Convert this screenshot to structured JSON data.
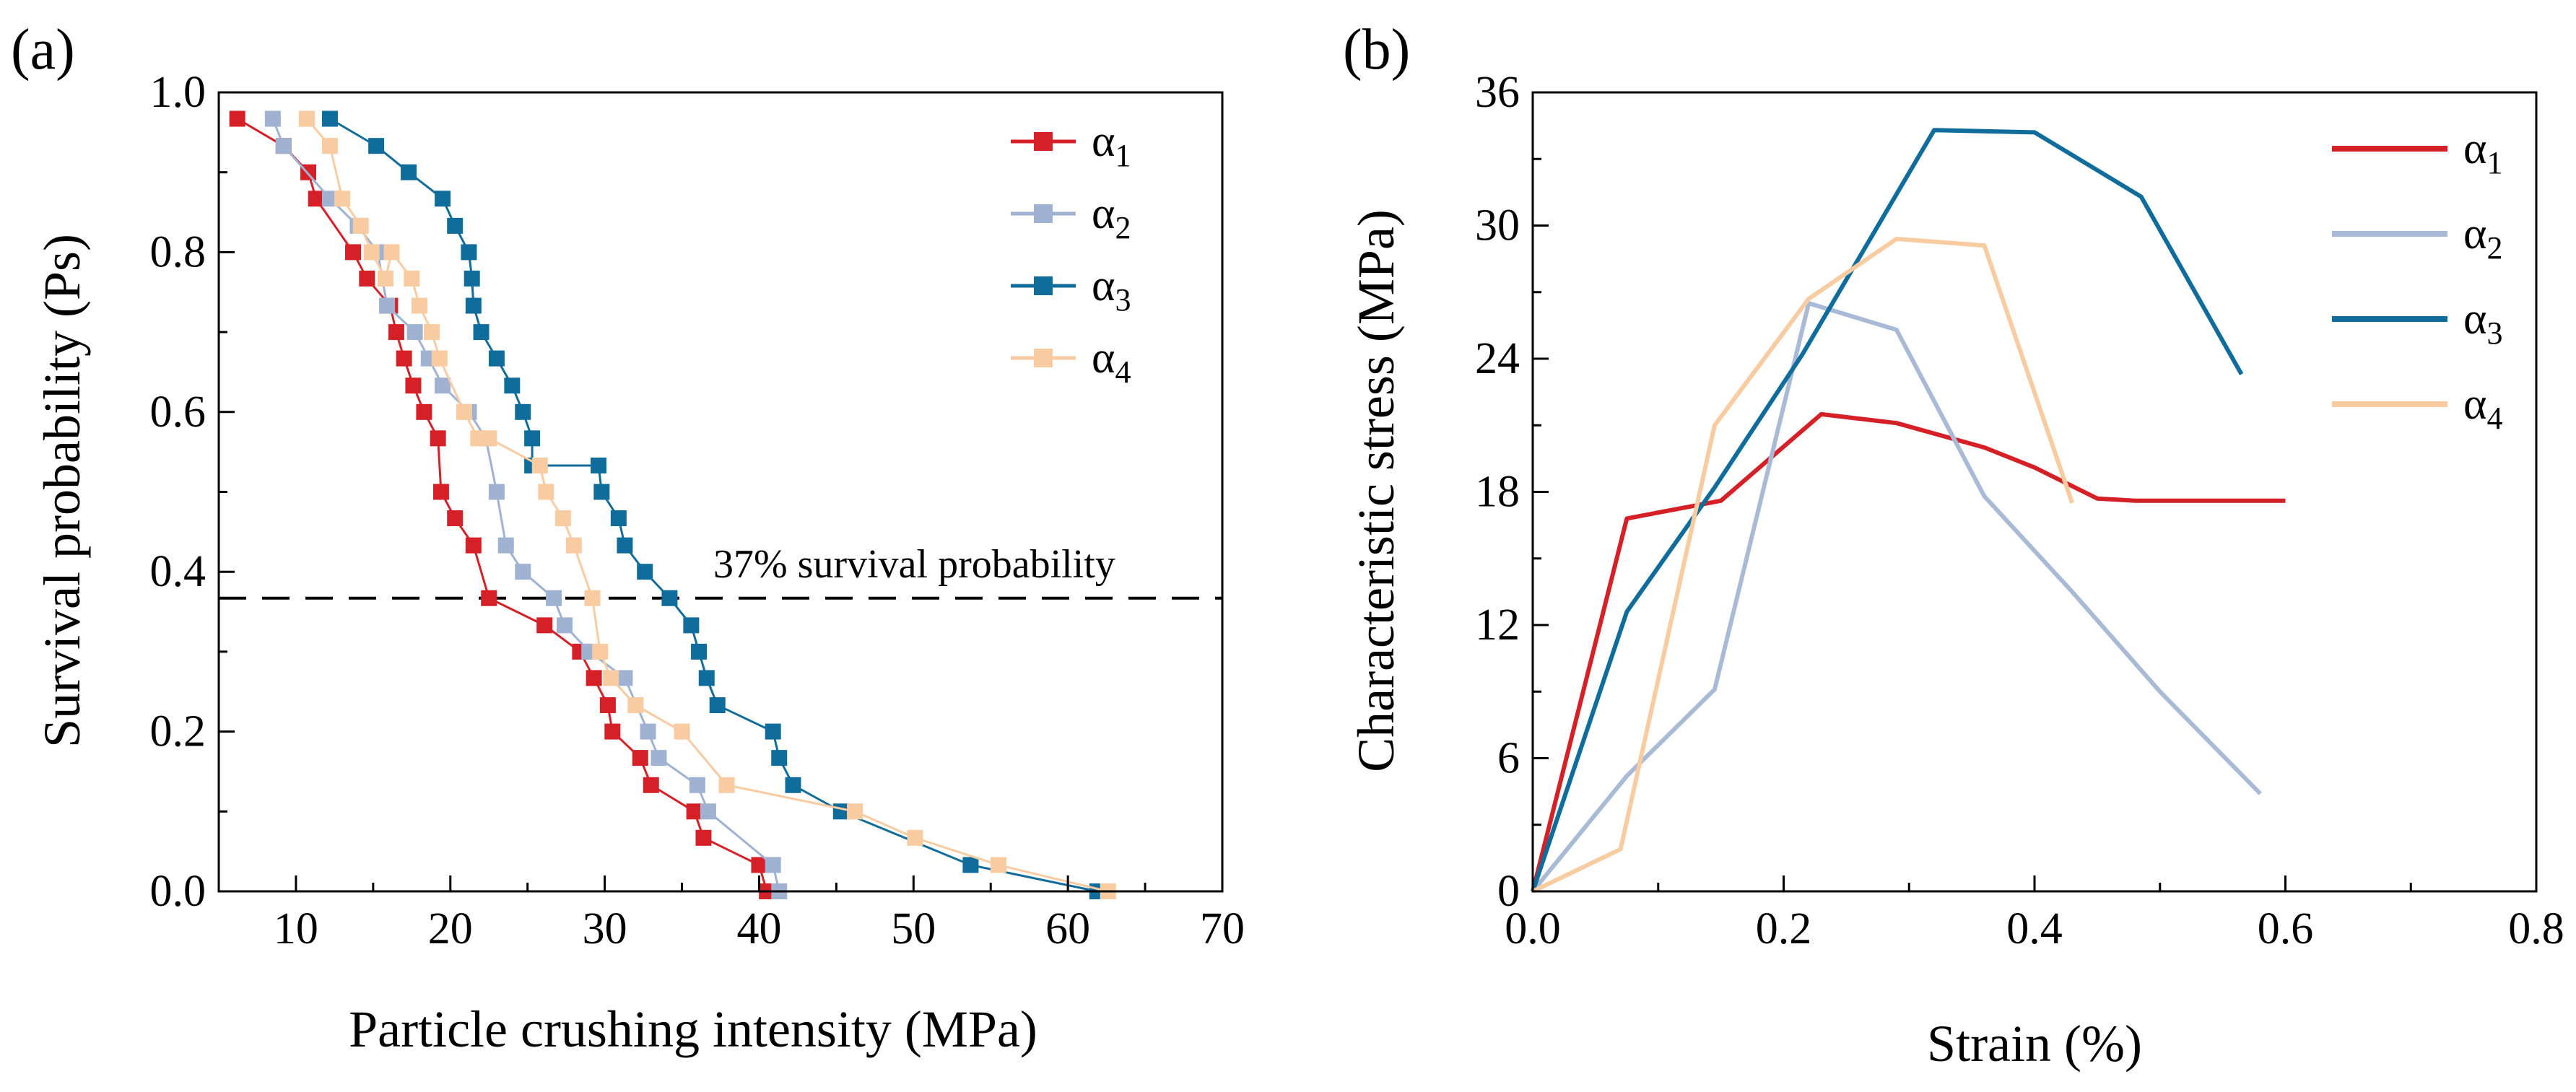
{
  "chart_data": [
    {
      "panel": "(a)",
      "type": "line",
      "xlabel": "Particle crushing intensity (MPa)",
      "ylabel": "Survival probability (Ps)",
      "xlim": [
        5,
        70
      ],
      "ylim": [
        0,
        1.0
      ],
      "xticks": [
        "10",
        "20",
        "30",
        "40",
        "50",
        "60",
        "70"
      ],
      "yticks": [
        "0.0",
        "0.2",
        "0.4",
        "0.6",
        "0.8",
        "1.0"
      ],
      "annotation": "37% survival probability",
      "reference_line_y": 0.367,
      "legend_position": "top-right",
      "series": [
        {
          "name": "α",
          "subscript": "1",
          "color": "#D62027",
          "marker": "square",
          "x": [
            6.2,
            9.2,
            10.8,
            11.3,
            13.7,
            14.6,
            16.1,
            16.5,
            17.0,
            17.6,
            18.3,
            19.2,
            19.4,
            20.3,
            21.5,
            22.5,
            26.1,
            28.4,
            29.3,
            30.2,
            30.5,
            32.3,
            33.0,
            35.8,
            36.4,
            40.0,
            40.5
          ],
          "y": [
            0.967,
            0.933,
            0.9,
            0.867,
            0.8,
            0.767,
            0.733,
            0.7,
            0.667,
            0.633,
            0.6,
            0.567,
            0.5,
            0.467,
            0.433,
            0.367,
            0.333,
            0.3,
            0.267,
            0.233,
            0.2,
            0.167,
            0.133,
            0.1,
            0.067,
            0.033,
            0.0
          ]
        },
        {
          "name": "α",
          "subscript": "2",
          "color": "#9FB2D2",
          "marker": "square",
          "x": [
            8.5,
            9.2,
            12.2,
            14.0,
            15.3,
            15.9,
            17.7,
            18.6,
            19.5,
            21.2,
            22.3,
            23.0,
            23.6,
            24.7,
            26.7,
            27.4,
            29.0,
            31.3,
            32.8,
            33.5,
            36.0,
            36.7,
            40.9,
            41.3
          ],
          "y": [
            0.967,
            0.933,
            0.867,
            0.833,
            0.8,
            0.733,
            0.7,
            0.667,
            0.633,
            0.6,
            0.567,
            0.5,
            0.433,
            0.4,
            0.367,
            0.333,
            0.3,
            0.267,
            0.2,
            0.167,
            0.133,
            0.1,
            0.033,
            0.0
          ]
        },
        {
          "name": "α",
          "subscript": "3",
          "color": "#106D9B",
          "marker": "square",
          "x": [
            12.2,
            15.2,
            17.3,
            19.5,
            20.3,
            21.2,
            21.4,
            21.5,
            22.0,
            23.0,
            24.0,
            24.7,
            25.3,
            25.3,
            29.6,
            29.8,
            30.9,
            31.3,
            32.6,
            34.2,
            35.6,
            36.1,
            36.6,
            37.3,
            40.9,
            41.3,
            42.2,
            45.3,
            53.7,
            61.9
          ],
          "y": [
            0.967,
            0.933,
            0.9,
            0.867,
            0.833,
            0.8,
            0.767,
            0.733,
            0.7,
            0.667,
            0.633,
            0.6,
            0.567,
            0.533,
            0.533,
            0.5,
            0.467,
            0.433,
            0.4,
            0.367,
            0.333,
            0.3,
            0.267,
            0.233,
            0.2,
            0.167,
            0.133,
            0.1,
            0.033,
            0.0
          ]
        },
        {
          "name": "α",
          "subscript": "4",
          "color": "#F8CBA0",
          "marker": "square",
          "x": [
            10.7,
            12.2,
            13.0,
            14.2,
            14.9,
            15.8,
            16.2,
            17.5,
            18.0,
            18.8,
            19.3,
            20.9,
            21.8,
            22.5,
            25.8,
            26.2,
            27.3,
            28.0,
            29.2,
            29.7,
            30.4,
            32.0,
            35.0,
            37.9,
            46.2,
            50.1,
            55.5,
            62.6
          ],
          "y": [
            0.967,
            0.933,
            0.867,
            0.833,
            0.8,
            0.767,
            0.8,
            0.767,
            0.733,
            0.7,
            0.667,
            0.6,
            0.567,
            0.567,
            0.533,
            0.5,
            0.467,
            0.433,
            0.367,
            0.3,
            0.267,
            0.233,
            0.2,
            0.133,
            0.1,
            0.067,
            0.033,
            0.0
          ]
        }
      ]
    },
    {
      "panel": "(b)",
      "type": "line",
      "xlabel": "Strain (%)",
      "ylabel": "Characteristic stress (MPa)",
      "xlim": [
        0,
        0.8
      ],
      "ylim": [
        0,
        36
      ],
      "xticks": [
        "0.0",
        "0.2",
        "0.4",
        "0.6",
        "0.8"
      ],
      "yticks": [
        "0",
        "6",
        "12",
        "18",
        "24",
        "30",
        "36"
      ],
      "legend_position": "top-right",
      "series": [
        {
          "name": "α",
          "subscript": "1",
          "color": "#D62027",
          "x": [
            0.0,
            0.075,
            0.15,
            0.23,
            0.29,
            0.36,
            0.4,
            0.45,
            0.48,
            0.6
          ],
          "y": [
            0.0,
            16.8,
            17.6,
            21.5,
            21.1,
            20.0,
            19.1,
            17.7,
            17.6,
            17.6
          ]
        },
        {
          "name": "α",
          "subscript": "2",
          "color": "#A9BAD6",
          "x": [
            0.0,
            0.075,
            0.145,
            0.22,
            0.29,
            0.36,
            0.43,
            0.5,
            0.58
          ],
          "y": [
            0.0,
            5.2,
            9.1,
            26.5,
            25.3,
            17.8,
            13.5,
            9.0,
            4.4
          ]
        },
        {
          "name": "α",
          "subscript": "3",
          "color": "#106D9B",
          "x": [
            0.0,
            0.075,
            0.145,
            0.215,
            0.32,
            0.4,
            0.485,
            0.565
          ],
          "y": [
            0.0,
            12.6,
            18.2,
            24.2,
            34.3,
            34.2,
            31.3,
            23.3
          ]
        },
        {
          "name": "α",
          "subscript": "4",
          "color": "#F8CBA0",
          "x": [
            0.0,
            0.07,
            0.145,
            0.22,
            0.29,
            0.36,
            0.43
          ],
          "y": [
            0.0,
            1.9,
            21.0,
            26.7,
            29.4,
            29.1,
            17.5
          ]
        }
      ]
    }
  ]
}
